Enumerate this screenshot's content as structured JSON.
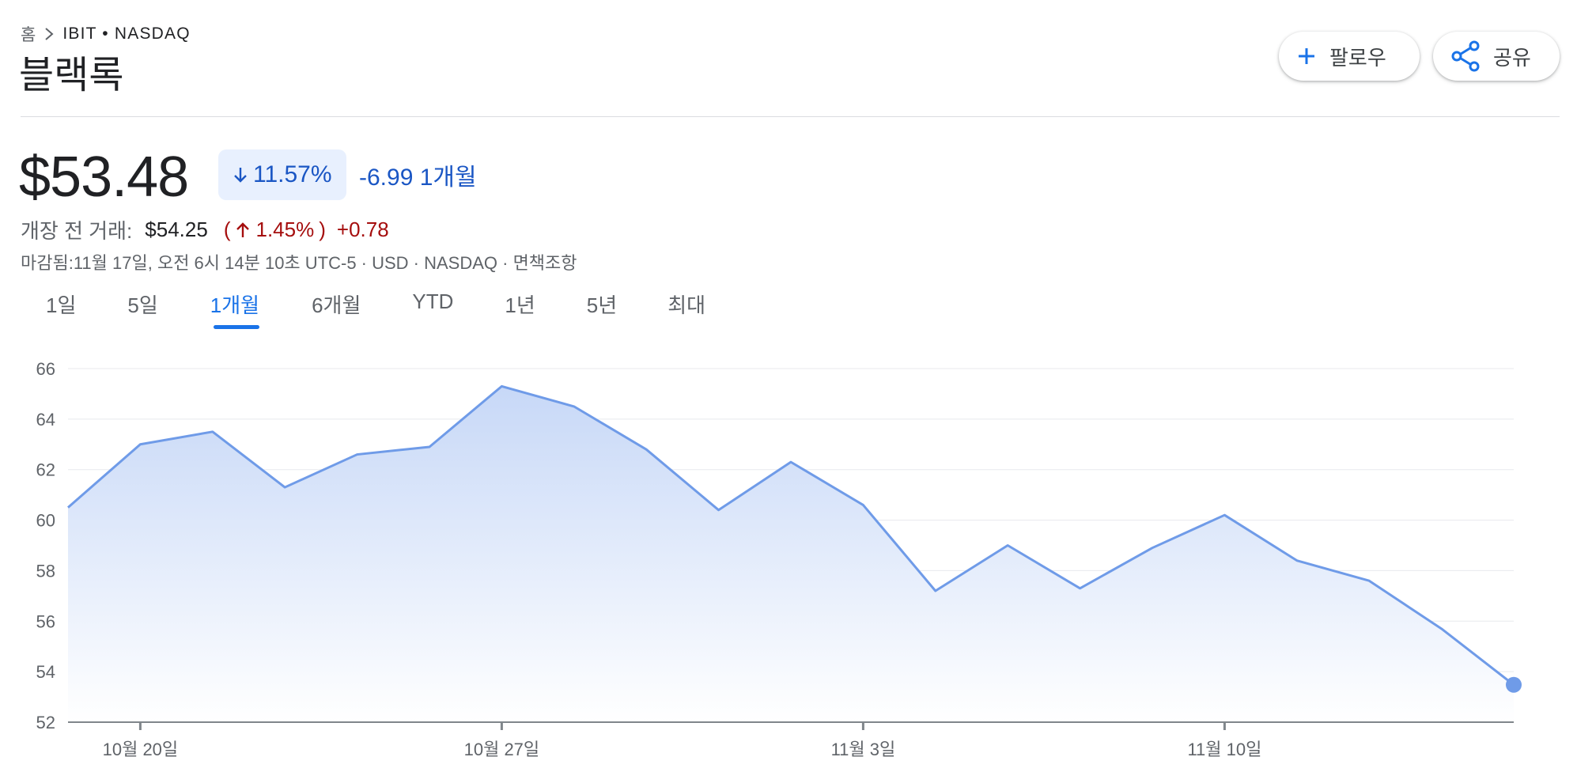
{
  "breadcrumb": {
    "home": "홈",
    "symbol": "IBIT • NASDAQ"
  },
  "title": "블랙록",
  "actions": {
    "follow_label": "팔로우",
    "share_label": "공유"
  },
  "quote": {
    "price": "$53.48",
    "change_pct": "11.57%",
    "change_abs": "-6.99 1개월",
    "direction": "down"
  },
  "premarket": {
    "label": "개장 전 거래:",
    "price": "$54.25",
    "open_paren": "(",
    "pct": "1.45%",
    "close_paren": ")",
    "abs": "+0.78"
  },
  "meta": "마감됨:11월 17일, 오전 6시 14분 10초 UTC-5 · USD · NASDAQ · 면책조항",
  "tabs": [
    {
      "label": "1일",
      "active": false
    },
    {
      "label": "5일",
      "active": false
    },
    {
      "label": "1개월",
      "active": true
    },
    {
      "label": "6개월",
      "active": false
    },
    {
      "label": "YTD",
      "active": false
    },
    {
      "label": "1년",
      "active": false
    },
    {
      "label": "5년",
      "active": false
    },
    {
      "label": "최대",
      "active": false
    }
  ],
  "colors": {
    "line": "#6f9be8",
    "fill_top": "#c7d8f7",
    "fill_bottom": "#ffffff",
    "accent": "#1a73e8",
    "negative": "#1a56c4",
    "positive": "#a50e0e"
  },
  "chart_data": {
    "type": "area",
    "ylim": [
      52,
      66
    ],
    "yticks": [
      52,
      54,
      56,
      58,
      60,
      62,
      64,
      66
    ],
    "grid": true,
    "x_tick_labels": [
      "10월 20일",
      "10월 27일",
      "11월 3일",
      "11월 10일"
    ],
    "x_tick_index": [
      1,
      6,
      11,
      16
    ],
    "series": [
      {
        "values": [
          60.5,
          63.0,
          63.5,
          61.3,
          62.6,
          62.9,
          65.3,
          64.5,
          62.8,
          60.4,
          62.3,
          60.6,
          57.2,
          59.0,
          57.3,
          58.9,
          60.2,
          58.4,
          57.6,
          55.7,
          53.48
        ]
      }
    ],
    "last_point_marker": true
  }
}
